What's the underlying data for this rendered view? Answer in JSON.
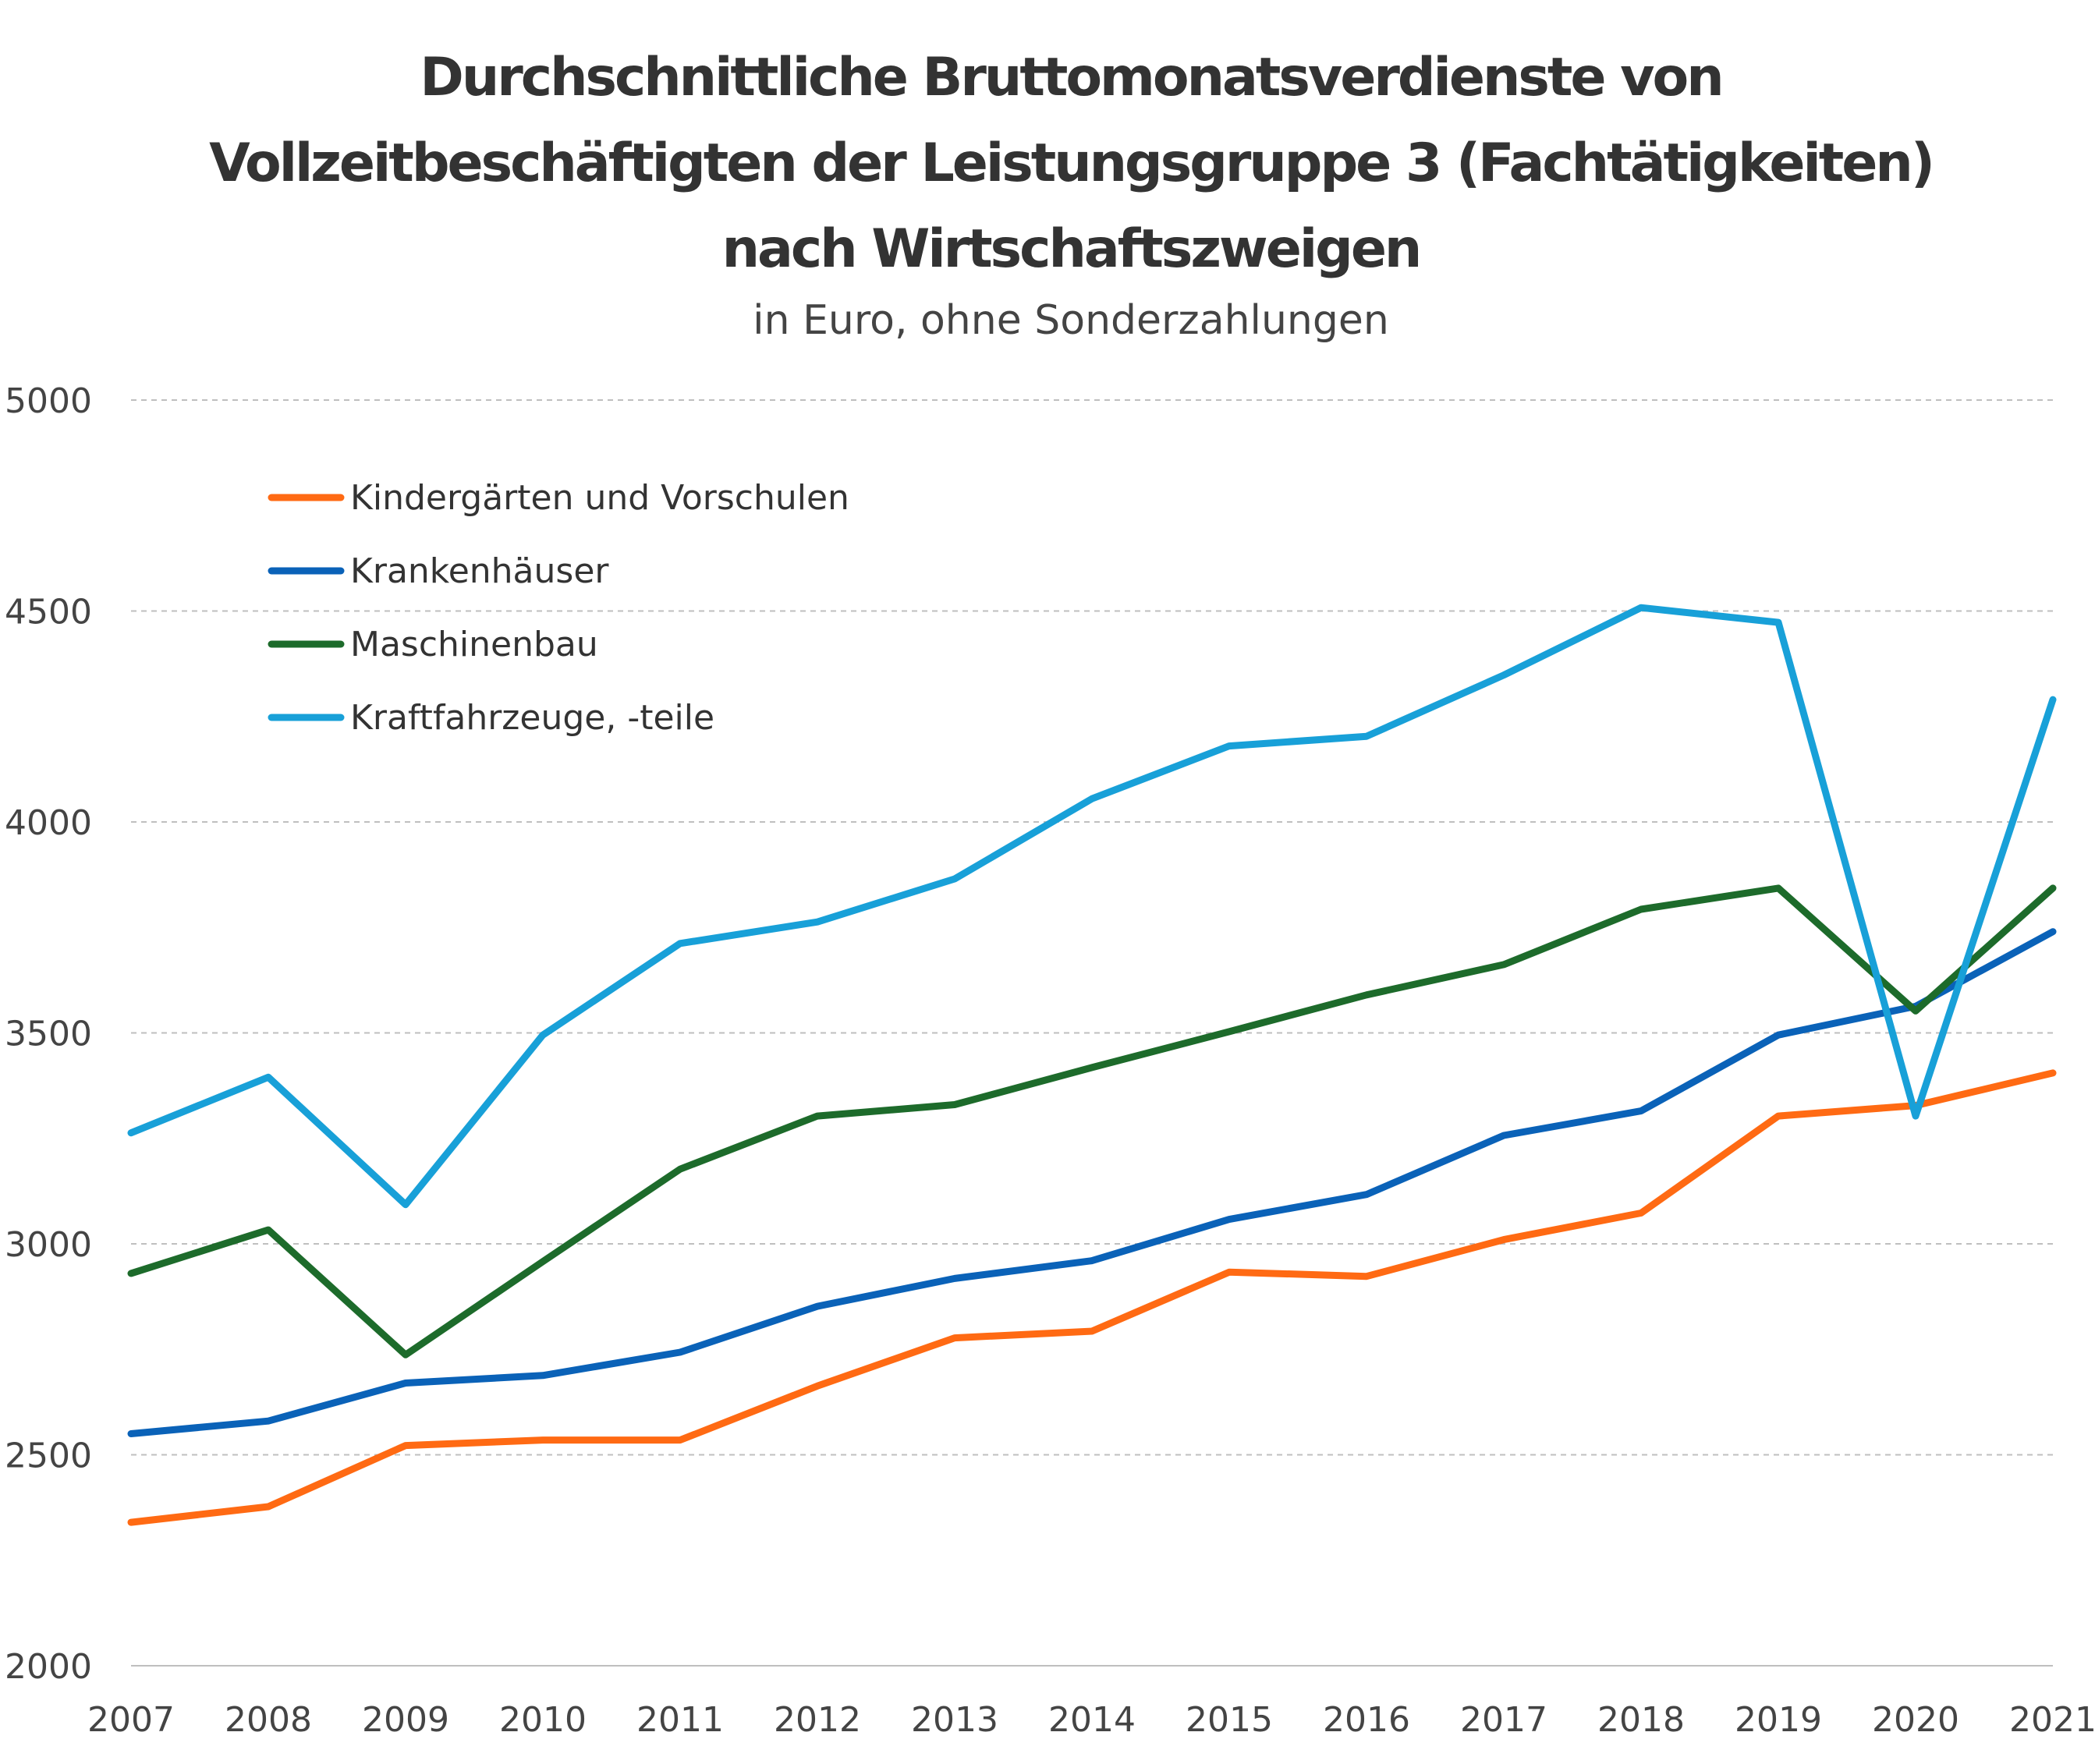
{
  "chart_data": {
    "type": "line",
    "title_lines": [
      "Durchschnittliche Bruttomonatsverdienste von",
      "Vollzeitbeschäftigten der Leistungsgruppe 3 (Fachtätigkeiten)",
      "nach Wirtschaftszweigen"
    ],
    "subtitle": "in Euro, ohne Sonderzahlungen",
    "xlabel": "",
    "ylabel": "",
    "x": [
      "2007",
      "2008",
      "2009",
      "2010",
      "2011",
      "2012",
      "2013",
      "2014",
      "2015",
      "2016",
      "2017",
      "2018",
      "2019",
      "2020",
      "2021"
    ],
    "ylim": [
      2000,
      5000
    ],
    "yticks": [
      "2000",
      "2500",
      "3000",
      "3500",
      "4000",
      "4500",
      "5000"
    ],
    "grid": true,
    "legend_position": "top-left",
    "series": [
      {
        "name": "Kindergärten und Vorschulen",
        "color": "#ff6a13",
        "values": [
          2340,
          2377,
          2522,
          2535,
          2535,
          2663,
          2777,
          2793,
          2933,
          2923,
          3010,
          3073,
          3303,
          3328,
          3405
        ]
      },
      {
        "name": "Krankenhäuser",
        "color": "#0a62b8",
        "values": [
          2550,
          2580,
          2670,
          2688,
          2743,
          2852,
          2918,
          2960,
          3058,
          3117,
          3257,
          3315,
          3495,
          3563,
          3740
        ]
      },
      {
        "name": "Maschinenbau",
        "color": "#1d6b2b",
        "values": [
          2930,
          3033,
          2737,
          2958,
          3177,
          3303,
          3330,
          3418,
          3503,
          3590,
          3662,
          3793,
          3843,
          3552,
          3843
        ]
      },
      {
        "name": "Kraftfahrzeuge, -teile",
        "color": "#18a0d8",
        "values": [
          3263,
          3395,
          3093,
          3495,
          3712,
          3763,
          3865,
          4055,
          4180,
          4203,
          4348,
          4508,
          4473,
          3303,
          4290
        ]
      }
    ]
  }
}
